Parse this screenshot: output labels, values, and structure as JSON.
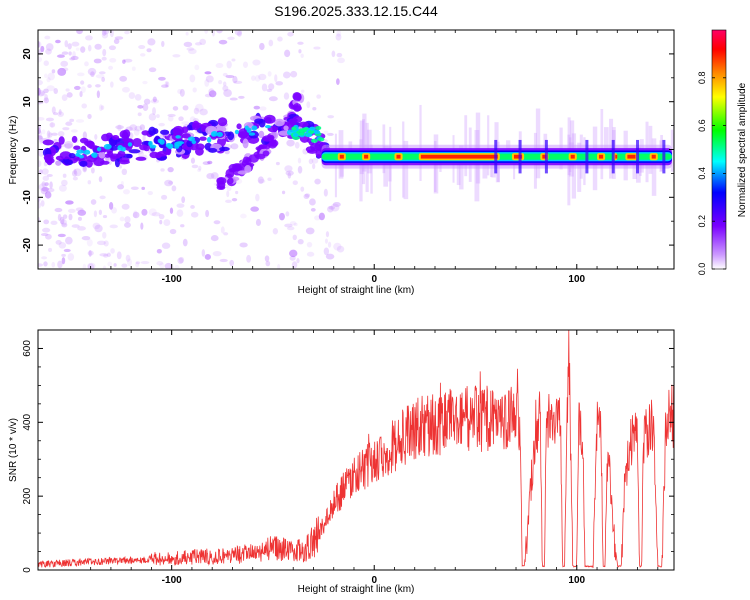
{
  "title": "S196.2025.333.12.15.C44",
  "chart_data": [
    {
      "type": "heatmap",
      "title": "S196.2025.333.12.15.C44",
      "xlabel": "Height of straight line (km)",
      "ylabel": "Frequency (Hz)",
      "xlim": [
        -166,
        148
      ],
      "ylim": [
        -25,
        25
      ],
      "xticks": [
        -100,
        0,
        100
      ],
      "yticks": [
        -20,
        -10,
        0,
        10,
        20
      ],
      "colorbar": {
        "label": "Normalized spectral amplitude",
        "range": [
          0,
          1
        ],
        "ticks": [
          "0.0",
          "0.2",
          "0.4",
          "0.6",
          "0.8"
        ],
        "colors": [
          "#ffffff",
          "#cc99ff",
          "#7a00ff",
          "#0000ff",
          "#00ffff",
          "#00ff00",
          "#ffff00",
          "#ff8800",
          "#ff0000",
          "#ff0066"
        ]
      },
      "ridge": [
        {
          "x": -160,
          "y": -1
        },
        {
          "x": -140,
          "y": -0.5
        },
        {
          "x": -120,
          "y": 0.5
        },
        {
          "x": -100,
          "y": 1.5
        },
        {
          "x": -80,
          "y": 2.5
        },
        {
          "x": -60,
          "y": 4
        },
        {
          "x": -40,
          "y": 4.5
        },
        {
          "x": -30,
          "y": 2
        },
        {
          "x": -25,
          "y": -1
        },
        {
          "x": 0,
          "y": -1.5
        },
        {
          "x": 50,
          "y": -1.5
        },
        {
          "x": 100,
          "y": -1
        },
        {
          "x": 148,
          "y": -1
        }
      ],
      "secondary_ridge": [
        {
          "x": -75,
          "y": -7
        },
        {
          "x": -60,
          "y": -2
        },
        {
          "x": -50,
          "y": 2
        },
        {
          "x": -42,
          "y": 6
        },
        {
          "x": -38,
          "y": 10
        }
      ]
    },
    {
      "type": "line",
      "xlabel": "Height of straight line (km)",
      "ylabel": "SNR (10 * v/v)",
      "xlim": [
        -166,
        148
      ],
      "ylim": [
        0,
        650
      ],
      "xticks": [
        -100,
        0,
        100
      ],
      "yticks": [
        0,
        200,
        400,
        600
      ],
      "color": "#ee3333",
      "series": [
        {
          "name": "SNR",
          "x": [
            -166,
            -150,
            -130,
            -110,
            -90,
            -70,
            -60,
            -50,
            -45,
            -40,
            -35,
            -30,
            -25,
            -20,
            -15,
            -10,
            -5,
            0,
            5,
            10,
            15,
            20,
            25,
            30,
            35,
            40,
            45,
            50,
            55,
            60,
            65,
            70,
            72,
            73,
            74,
            80,
            82,
            83,
            84,
            85,
            86,
            88,
            90,
            92,
            93,
            94,
            95,
            96,
            98,
            100,
            101,
            102,
            103,
            104,
            108,
            110,
            112,
            113,
            114,
            115,
            116,
            118,
            120,
            122,
            124,
            125,
            126,
            128,
            130,
            131,
            132,
            133,
            134,
            136,
            138,
            140,
            142,
            144,
            145,
            146,
            148
          ],
          "y": [
            15,
            20,
            25,
            30,
            35,
            40,
            45,
            60,
            55,
            55,
            50,
            80,
            120,
            180,
            220,
            260,
            270,
            300,
            320,
            340,
            360,
            380,
            390,
            395,
            400,
            405,
            410,
            410,
            410,
            405,
            410,
            405,
            400,
            10,
            10,
            400,
            420,
            10,
            10,
            390,
            400,
            390,
            410,
            400,
            10,
            10,
            400,
            640,
            10,
            10,
            400,
            380,
            360,
            10,
            10,
            380,
            370,
            10,
            10,
            300,
            280,
            100,
            10,
            10,
            300,
            290,
            340,
            380,
            360,
            10,
            10,
            360,
            370,
            380,
            390,
            10,
            10,
            400,
            410,
            420,
            420
          ]
        }
      ]
    }
  ]
}
